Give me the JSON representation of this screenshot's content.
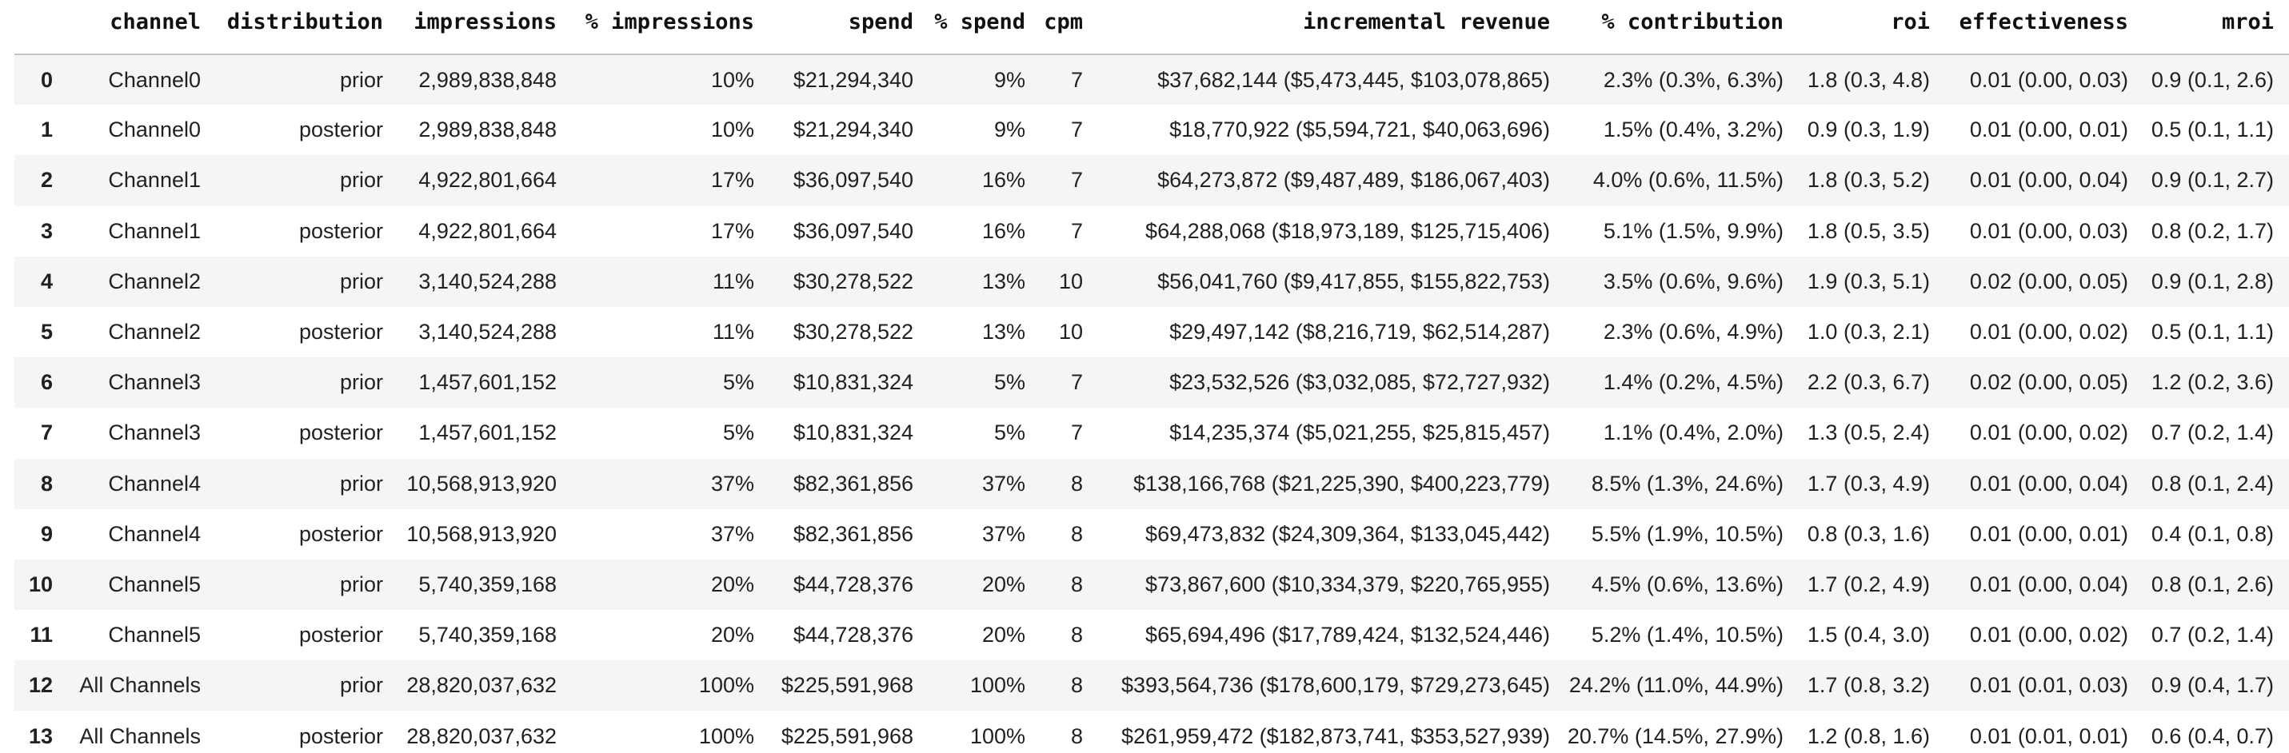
{
  "colors": {
    "row_stripe": "#f5f5f5",
    "row_plain": "#ffffff",
    "header_border": "#c4c4c4",
    "header_text": "#111111",
    "body_text": "#212121"
  },
  "table": {
    "index_header": "",
    "columns": [
      {
        "key": "channel",
        "label": "channel"
      },
      {
        "key": "distribution",
        "label": "distribution"
      },
      {
        "key": "impressions",
        "label": "impressions"
      },
      {
        "key": "pct-impressions",
        "label": "% impressions"
      },
      {
        "key": "spend",
        "label": "spend"
      },
      {
        "key": "pct-spend",
        "label": "% spend"
      },
      {
        "key": "cpm",
        "label": "cpm"
      },
      {
        "key": "incremental-revenue",
        "label": "incremental revenue"
      },
      {
        "key": "pct-contribution",
        "label": "% contribution"
      },
      {
        "key": "roi",
        "label": "roi"
      },
      {
        "key": "effectiveness",
        "label": "effectiveness"
      },
      {
        "key": "mroi",
        "label": "mroi"
      }
    ],
    "rows": [
      {
        "index": "0",
        "cells": [
          "Channel0",
          "prior",
          "2,989,838,848",
          "10%",
          "$21,294,340",
          "9%",
          "7",
          "$37,682,144 ($5,473,445, $103,078,865)",
          "2.3% (0.3%, 6.3%)",
          "1.8 (0.3, 4.8)",
          "0.01 (0.00, 0.03)",
          "0.9 (0.1, 2.6)"
        ]
      },
      {
        "index": "1",
        "cells": [
          "Channel0",
          "posterior",
          "2,989,838,848",
          "10%",
          "$21,294,340",
          "9%",
          "7",
          "$18,770,922 ($5,594,721, $40,063,696)",
          "1.5% (0.4%, 3.2%)",
          "0.9 (0.3, 1.9)",
          "0.01 (0.00, 0.01)",
          "0.5 (0.1, 1.1)"
        ]
      },
      {
        "index": "2",
        "cells": [
          "Channel1",
          "prior",
          "4,922,801,664",
          "17%",
          "$36,097,540",
          "16%",
          "7",
          "$64,273,872 ($9,487,489, $186,067,403)",
          "4.0% (0.6%, 11.5%)",
          "1.8 (0.3, 5.2)",
          "0.01 (0.00, 0.04)",
          "0.9 (0.1, 2.7)"
        ]
      },
      {
        "index": "3",
        "cells": [
          "Channel1",
          "posterior",
          "4,922,801,664",
          "17%",
          "$36,097,540",
          "16%",
          "7",
          "$64,288,068 ($18,973,189, $125,715,406)",
          "5.1% (1.5%, 9.9%)",
          "1.8 (0.5, 3.5)",
          "0.01 (0.00, 0.03)",
          "0.8 (0.2, 1.7)"
        ]
      },
      {
        "index": "4",
        "cells": [
          "Channel2",
          "prior",
          "3,140,524,288",
          "11%",
          "$30,278,522",
          "13%",
          "10",
          "$56,041,760 ($9,417,855, $155,822,753)",
          "3.5% (0.6%, 9.6%)",
          "1.9 (0.3, 5.1)",
          "0.02 (0.00, 0.05)",
          "0.9 (0.1, 2.8)"
        ]
      },
      {
        "index": "5",
        "cells": [
          "Channel2",
          "posterior",
          "3,140,524,288",
          "11%",
          "$30,278,522",
          "13%",
          "10",
          "$29,497,142 ($8,216,719, $62,514,287)",
          "2.3% (0.6%, 4.9%)",
          "1.0 (0.3, 2.1)",
          "0.01 (0.00, 0.02)",
          "0.5 (0.1, 1.1)"
        ]
      },
      {
        "index": "6",
        "cells": [
          "Channel3",
          "prior",
          "1,457,601,152",
          "5%",
          "$10,831,324",
          "5%",
          "7",
          "$23,532,526 ($3,032,085, $72,727,932)",
          "1.4% (0.2%, 4.5%)",
          "2.2 (0.3, 6.7)",
          "0.02 (0.00, 0.05)",
          "1.2 (0.2, 3.6)"
        ]
      },
      {
        "index": "7",
        "cells": [
          "Channel3",
          "posterior",
          "1,457,601,152",
          "5%",
          "$10,831,324",
          "5%",
          "7",
          "$14,235,374 ($5,021,255, $25,815,457)",
          "1.1% (0.4%, 2.0%)",
          "1.3 (0.5, 2.4)",
          "0.01 (0.00, 0.02)",
          "0.7 (0.2, 1.4)"
        ]
      },
      {
        "index": "8",
        "cells": [
          "Channel4",
          "prior",
          "10,568,913,920",
          "37%",
          "$82,361,856",
          "37%",
          "8",
          "$138,166,768 ($21,225,390, $400,223,779)",
          "8.5% (1.3%, 24.6%)",
          "1.7 (0.3, 4.9)",
          "0.01 (0.00, 0.04)",
          "0.8 (0.1, 2.4)"
        ]
      },
      {
        "index": "9",
        "cells": [
          "Channel4",
          "posterior",
          "10,568,913,920",
          "37%",
          "$82,361,856",
          "37%",
          "8",
          "$69,473,832 ($24,309,364, $133,045,442)",
          "5.5% (1.9%, 10.5%)",
          "0.8 (0.3, 1.6)",
          "0.01 (0.00, 0.01)",
          "0.4 (0.1, 0.8)"
        ]
      },
      {
        "index": "10",
        "cells": [
          "Channel5",
          "prior",
          "5,740,359,168",
          "20%",
          "$44,728,376",
          "20%",
          "8",
          "$73,867,600 ($10,334,379, $220,765,955)",
          "4.5% (0.6%, 13.6%)",
          "1.7 (0.2, 4.9)",
          "0.01 (0.00, 0.04)",
          "0.8 (0.1, 2.6)"
        ]
      },
      {
        "index": "11",
        "cells": [
          "Channel5",
          "posterior",
          "5,740,359,168",
          "20%",
          "$44,728,376",
          "20%",
          "8",
          "$65,694,496 ($17,789,424, $132,524,446)",
          "5.2% (1.4%, 10.5%)",
          "1.5 (0.4, 3.0)",
          "0.01 (0.00, 0.02)",
          "0.7 (0.2, 1.4)"
        ]
      },
      {
        "index": "12",
        "cells": [
          "All Channels",
          "prior",
          "28,820,037,632",
          "100%",
          "$225,591,968",
          "100%",
          "8",
          "$393,564,736 ($178,600,179, $729,273,645)",
          "24.2% (11.0%, 44.9%)",
          "1.7 (0.8, 3.2)",
          "0.01 (0.01, 0.03)",
          "0.9 (0.4, 1.7)"
        ]
      },
      {
        "index": "13",
        "cells": [
          "All Channels",
          "posterior",
          "28,820,037,632",
          "100%",
          "$225,591,968",
          "100%",
          "8",
          "$261,959,472 ($182,873,741, $353,527,939)",
          "20.7% (14.5%, 27.9%)",
          "1.2 (0.8, 1.6)",
          "0.01 (0.01, 0.01)",
          "0.6 (0.4, 0.7)"
        ]
      }
    ]
  }
}
